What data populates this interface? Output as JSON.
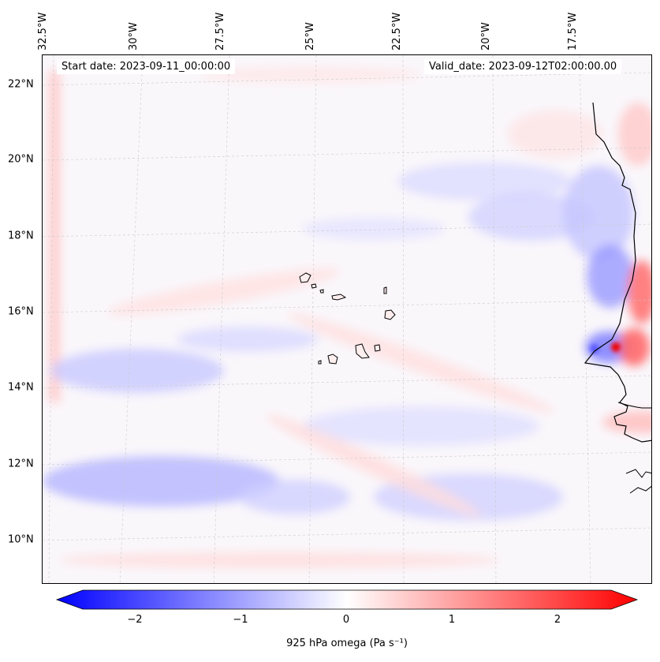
{
  "map": {
    "longitude_labels": [
      "32.5°W",
      "30°W",
      "27.5°W",
      "25°W",
      "22.5°W",
      "20°W",
      "17.5°W"
    ],
    "latitude_labels": [
      "22°N",
      "20°N",
      "18°N",
      "16°N",
      "14°N",
      "12°N",
      "10°N"
    ],
    "start_date": "Start date: 2023-09-11_00:00:00",
    "valid_date": "Valid_date: 2023-09-12T02:00:00.00",
    "field": "925 hPa omega",
    "features": [
      "coastline-west-africa",
      "cape-verde-islands"
    ]
  },
  "colorbar": {
    "label": "925 hPa omega (Pa s⁻¹)",
    "ticks": [
      "−2",
      "−1",
      "0",
      "1",
      "2"
    ],
    "range": [
      -2.75,
      2.75
    ],
    "colormap": "bwr",
    "colors": {
      "negative": "#0000ff",
      "neutral": "#ffffff",
      "positive": "#ff0000"
    },
    "extend": "both"
  }
}
